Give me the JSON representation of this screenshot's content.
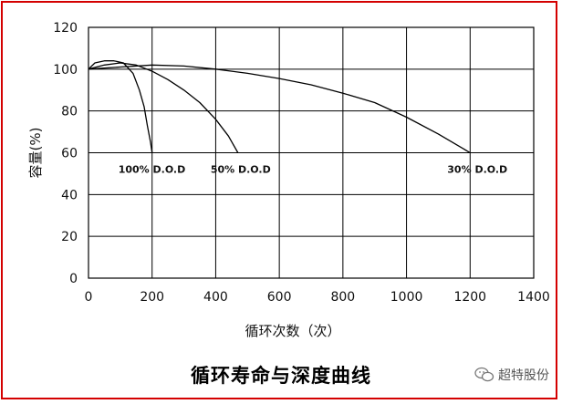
{
  "caption": "循环寿命与深度曲线",
  "watermark": {
    "text": "超特股份",
    "icon": "wechat-icon"
  },
  "colors": {
    "frame": "#d40000",
    "line": "#000000",
    "grid": "#000000"
  },
  "chart_data": {
    "type": "line",
    "title": "",
    "xlabel": "循环次数（次）",
    "ylabel": "容量(%)",
    "xlim": [
      0,
      1400
    ],
    "ylim": [
      0,
      120
    ],
    "xticks": [
      0,
      200,
      400,
      600,
      800,
      1000,
      1200,
      1400
    ],
    "yticks": [
      0,
      20,
      40,
      60,
      80,
      100,
      120
    ],
    "grid": true,
    "legend": "none",
    "series": [
      {
        "name": "100% D.O.D",
        "x": [
          0,
          20,
          50,
          80,
          110,
          140,
          160,
          175,
          185,
          195,
          200
        ],
        "y": [
          100,
          103,
          104,
          104,
          103,
          98,
          90,
          82,
          73,
          65,
          60
        ]
      },
      {
        "name": "50% D.O.D",
        "x": [
          0,
          50,
          100,
          150,
          200,
          250,
          300,
          350,
          400,
          440,
          470
        ],
        "y": [
          100,
          102,
          103,
          102,
          99,
          95,
          90,
          84,
          76,
          68,
          60
        ]
      },
      {
        "name": "30% D.O.D",
        "x": [
          0,
          100,
          200,
          300,
          400,
          500,
          600,
          700,
          800,
          900,
          1000,
          1100,
          1200
        ],
        "y": [
          100,
          101,
          102,
          101.5,
          100,
          98,
          95.5,
          92.5,
          88.5,
          84,
          77,
          69,
          60
        ]
      }
    ]
  }
}
